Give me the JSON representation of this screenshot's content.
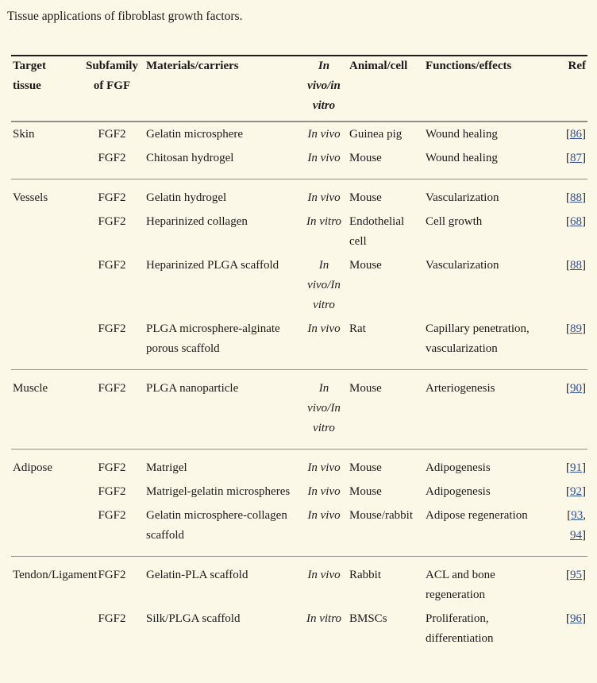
{
  "title": "Tissue applications of fibroblast growth factors.",
  "colors": {
    "background": "#fcf8e7",
    "text": "#1a1a1a",
    "link": "#2f4f9d",
    "top_rule": "#1c1c1c",
    "section_rule": "#8e8e8e"
  },
  "table": {
    "headers": [
      {
        "key": "tissue",
        "lines": [
          "Target",
          "tissue"
        ]
      },
      {
        "key": "fgf",
        "lines": [
          "Subfamily",
          "of FGF"
        ]
      },
      {
        "key": "material",
        "lines": [
          "Materials/carriers"
        ]
      },
      {
        "key": "mode",
        "lines": [
          "In",
          "vivo/in",
          "vitro"
        ]
      },
      {
        "key": "animal",
        "lines": [
          "Animal/cell"
        ]
      },
      {
        "key": "function",
        "lines": [
          "Functions/effects"
        ]
      },
      {
        "key": "ref",
        "lines": [
          "Ref"
        ]
      }
    ],
    "sections": [
      {
        "name": "Skin",
        "rows": [
          {
            "tissue": "Skin",
            "fgf": "FGF2",
            "material": "Gelatin microsphere",
            "mode": "In vivo",
            "animal": "Guinea pig",
            "function": "Wound healing",
            "refs": [
              "86"
            ]
          },
          {
            "tissue": "",
            "fgf": "FGF2",
            "material": "Chitosan hydrogel",
            "mode": "In vivo",
            "animal": "Mouse",
            "function": "Wound healing",
            "refs": [
              "87"
            ]
          }
        ]
      },
      {
        "name": "Vessels",
        "rows": [
          {
            "tissue": "Vessels",
            "fgf": "FGF2",
            "material": "Gelatin hydrogel",
            "mode": "In vivo",
            "animal": "Mouse",
            "function": "Vascularization",
            "refs": [
              "88"
            ]
          },
          {
            "tissue": "",
            "fgf": "FGF2",
            "material": "Heparinized collagen",
            "mode": "In vitro",
            "animal": "Endothelial cell",
            "function": "Cell growth",
            "refs": [
              "68"
            ]
          },
          {
            "tissue": "",
            "fgf": "FGF2",
            "material": "Heparinized PLGA scaffold",
            "mode": "In vivo/In vitro",
            "animal": "Mouse",
            "function": "Vascularization",
            "refs": [
              "88"
            ]
          },
          {
            "tissue": "",
            "fgf": "FGF2",
            "material": "PLGA microsphere-alginate porous scaffold",
            "mode": "In vivo",
            "animal": "Rat",
            "function": "Capillary penetration, vascularization",
            "refs": [
              "89"
            ]
          }
        ]
      },
      {
        "name": "Muscle",
        "rows": [
          {
            "tissue": "Muscle",
            "fgf": "FGF2",
            "material": "PLGA nanoparticle",
            "mode": "In vivo/In vitro",
            "animal": "Mouse",
            "function": "Arteriogenesis",
            "refs": [
              "90"
            ]
          }
        ]
      },
      {
        "name": "Adipose",
        "rows": [
          {
            "tissue": "Adipose",
            "fgf": "FGF2",
            "material": "Matrigel",
            "mode": "In vivo",
            "animal": "Mouse",
            "function": "Adipogenesis",
            "refs": [
              "91"
            ]
          },
          {
            "tissue": "",
            "fgf": "FGF2",
            "material": "Matrigel-gelatin microspheres",
            "mode": "In vivo",
            "animal": "Mouse",
            "function": "Adipogenesis",
            "refs": [
              "92"
            ]
          },
          {
            "tissue": "",
            "fgf": "FGF2",
            "material": "Gelatin microsphere-collagen scaffold",
            "mode": "In vivo",
            "animal": "Mouse/rabbit",
            "function": "Adipose regeneration",
            "refs": [
              "93",
              "94"
            ]
          }
        ]
      },
      {
        "name": "Tendon/Ligament",
        "rows": [
          {
            "tissue": "Tendon/Ligament",
            "fgf": "FGF2",
            "material": "Gelatin-PLA scaffold",
            "mode": "In vivo",
            "animal": "Rabbit",
            "function": "ACL and bone regeneration",
            "refs": [
              "95"
            ]
          },
          {
            "tissue": "",
            "fgf": "FGF2",
            "material": "Silk/PLGA scaffold",
            "mode": "In vitro",
            "animal": "BMSCs",
            "function": "Proliferation, differentiation",
            "refs": [
              "96"
            ]
          }
        ]
      }
    ]
  }
}
